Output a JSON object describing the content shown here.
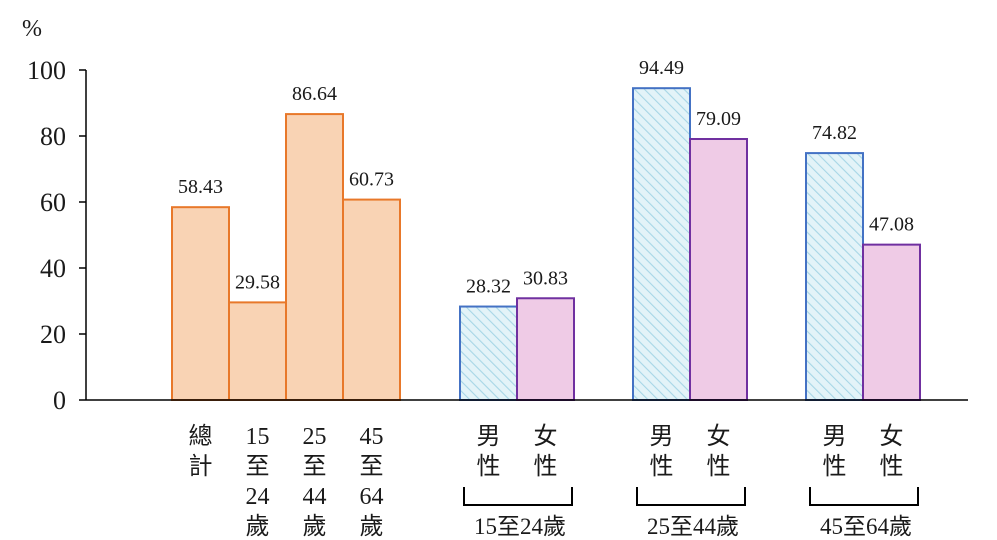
{
  "chart_data": {
    "type": "bar",
    "ylabel": "%",
    "ylim": [
      0,
      100
    ],
    "yticks": [
      0,
      20,
      40,
      60,
      80,
      100
    ],
    "grid": false,
    "legend": "none",
    "colors": {
      "total_fill": "#f9d3b4",
      "total_stroke": "#e8782a",
      "male_fill": "#e3f3f8",
      "male_hatch": "#a7d6e6",
      "male_stroke": "#4472c4",
      "female_fill": "#efcbe6",
      "female_stroke": "#7030a0",
      "axis": "#000000"
    },
    "groups": [
      {
        "caption": "",
        "bars": [
          {
            "label": "總計",
            "label_lines": [
              "總",
              "計"
            ],
            "value": 58.43,
            "kind": "total"
          },
          {
            "label": "15至24歲",
            "label_lines": [
              "15",
              "至",
              "24",
              "歲"
            ],
            "value": 29.58,
            "kind": "total"
          },
          {
            "label": "25至44歲",
            "label_lines": [
              "25",
              "至",
              "44",
              "歲"
            ],
            "value": 86.64,
            "kind": "total"
          },
          {
            "label": "45至64歲",
            "label_lines": [
              "45",
              "至",
              "64",
              "歲"
            ],
            "value": 60.73,
            "kind": "total"
          }
        ]
      },
      {
        "caption": "15至24歲",
        "bars": [
          {
            "label": "男性",
            "label_lines": [
              "男",
              "性"
            ],
            "value": 28.32,
            "kind": "male"
          },
          {
            "label": "女性",
            "label_lines": [
              "女",
              "性"
            ],
            "value": 30.83,
            "kind": "female"
          }
        ]
      },
      {
        "caption": "25至44歲",
        "bars": [
          {
            "label": "男性",
            "label_lines": [
              "男",
              "性"
            ],
            "value": 94.49,
            "kind": "male"
          },
          {
            "label": "女性",
            "label_lines": [
              "女",
              "性"
            ],
            "value": 79.09,
            "kind": "female"
          }
        ]
      },
      {
        "caption": "45至64歲",
        "bars": [
          {
            "label": "男性",
            "label_lines": [
              "男",
              "性"
            ],
            "value": 74.82,
            "kind": "male"
          },
          {
            "label": "女性",
            "label_lines": [
              "女",
              "性"
            ],
            "value": 47.08,
            "kind": "female"
          }
        ]
      }
    ]
  }
}
